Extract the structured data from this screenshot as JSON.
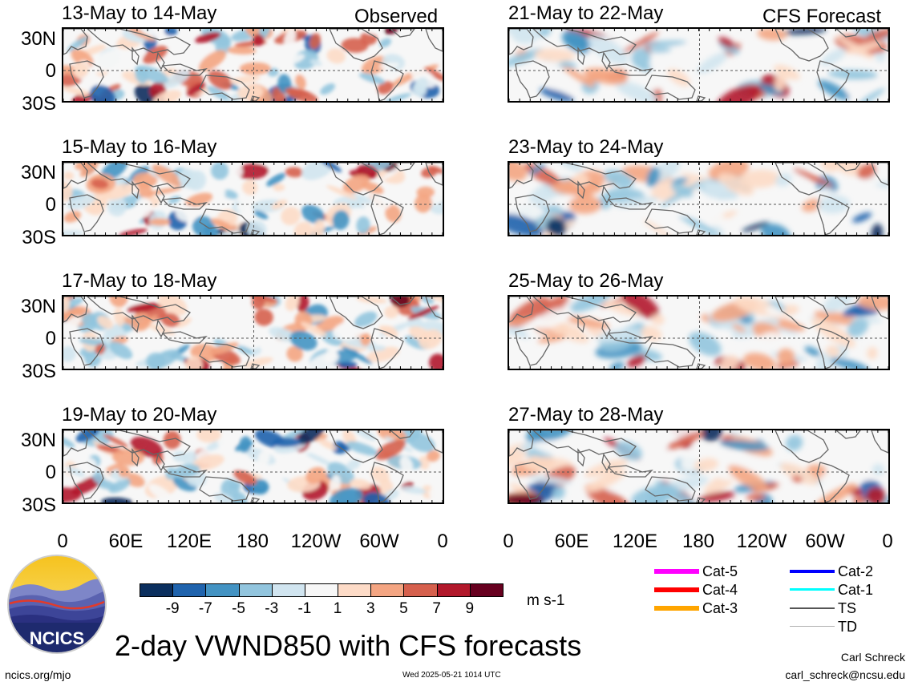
{
  "header": {
    "left_title": "Observed",
    "right_title": "CFS Forecast"
  },
  "panels": [
    {
      "label": "13-May to 14-May",
      "column": "observed",
      "seed": 3
    },
    {
      "label": "15-May to 16-May",
      "column": "observed",
      "seed": 7
    },
    {
      "label": "17-May to 18-May",
      "column": "observed",
      "seed": 11
    },
    {
      "label": "19-May to 20-May",
      "column": "observed",
      "seed": 13
    },
    {
      "label": "21-May to 22-May",
      "column": "forecast",
      "seed": 17
    },
    {
      "label": "23-May to 24-May",
      "column": "forecast",
      "seed": 19
    },
    {
      "label": "25-May to 26-May",
      "column": "forecast",
      "seed": 23
    },
    {
      "label": "27-May to 28-May",
      "column": "forecast",
      "seed": 29
    }
  ],
  "axes": {
    "lat_labels": [
      "30N",
      "0",
      "30S"
    ],
    "lon_labels": [
      "0",
      "60E",
      "120E",
      "180",
      "120W",
      "60W",
      "0"
    ]
  },
  "colorbar": {
    "colors": [
      "#0b2f5e",
      "#1f63ad",
      "#4393c3",
      "#92c5de",
      "#d1e5f0",
      "#f7f7f7",
      "#fddbc7",
      "#f4a582",
      "#d6604d",
      "#b2182b",
      "#67001f"
    ],
    "tick_labels": [
      "-9",
      "-7",
      "-5",
      "-3",
      "-1",
      "1",
      "3",
      "5",
      "7",
      "9"
    ],
    "units": "m s-1"
  },
  "storm_legend": [
    {
      "label": "Cat-5",
      "color": "#ff00ff"
    },
    {
      "label": "Cat-4",
      "color": "#ff0000"
    },
    {
      "label": "Cat-3",
      "color": "#ffa500"
    },
    {
      "label": "Cat-2",
      "color": "#0000ff"
    },
    {
      "label": "Cat-1",
      "color": "#00ffff"
    },
    {
      "label": "TS",
      "color": "#555555"
    },
    {
      "label": "TD",
      "color": "#b0b0b0"
    }
  ],
  "logo": {
    "text": "NCICS"
  },
  "footer": {
    "main_title": "2-day VWND850 with CFS forecasts",
    "author": "Carl Schreck",
    "email": "carl_schreck@ncsu.edu",
    "url": "ncics.org/mjo",
    "timestamp": "Wed 2025-05-21 1014 UTC"
  }
}
